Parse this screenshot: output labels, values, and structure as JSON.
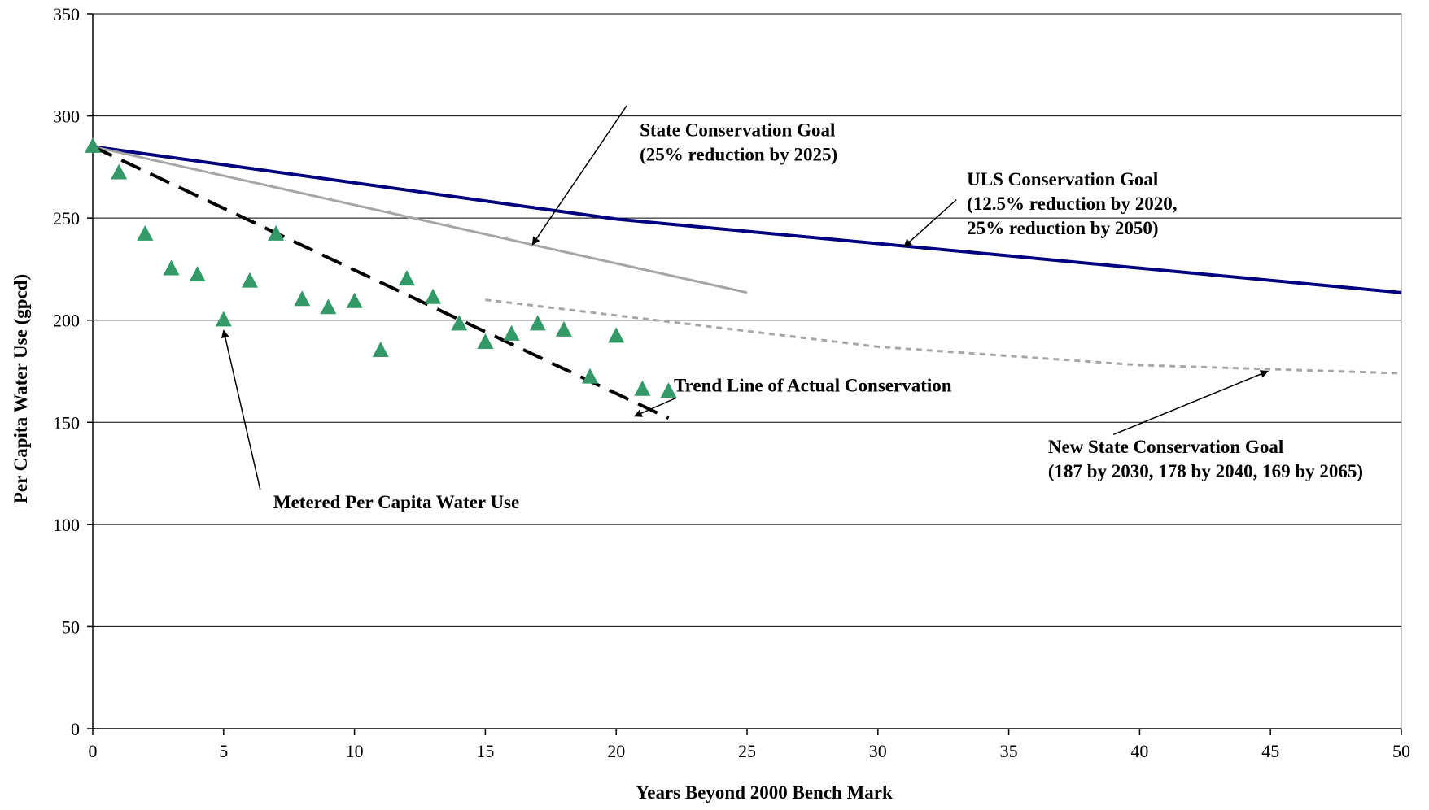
{
  "chart_data": {
    "type": "scatter",
    "title": "",
    "xlabel": "Years Beyond 2000 Bench Mark",
    "ylabel": "Per Capita Water Use (gpcd)",
    "xlim": [
      0,
      50
    ],
    "ylim": [
      0,
      350
    ],
    "x_ticks": [
      0,
      5,
      10,
      15,
      20,
      25,
      30,
      35,
      40,
      45,
      50
    ],
    "y_ticks": [
      0,
      50,
      100,
      150,
      200,
      250,
      300,
      350
    ],
    "grid": "horizontal",
    "legend": "none",
    "colors": {
      "metered": "#339966",
      "uls_goal": "#000080",
      "state_goal": "#a6a6a6",
      "new_state_goal": "#a6a6a6",
      "trend": "#000000",
      "grid": "#000000"
    },
    "series": [
      {
        "id": "metered",
        "style": "triangle-markers",
        "x": [
          0,
          1,
          2,
          3,
          4,
          5,
          6,
          7,
          8,
          9,
          10,
          11,
          12,
          13,
          14,
          15,
          16,
          17,
          18,
          19,
          20,
          21,
          22
        ],
        "y": [
          285,
          272,
          242,
          225,
          222,
          200,
          219,
          242,
          210,
          206,
          209,
          185,
          220,
          211,
          198,
          189,
          193,
          198,
          195,
          172,
          192,
          166,
          165
        ]
      },
      {
        "id": "uls_goal",
        "style": "solid-thick",
        "x": [
          0,
          20,
          50
        ],
        "y": [
          285,
          249.5,
          213.5
        ]
      },
      {
        "id": "state_goal",
        "style": "solid",
        "x": [
          0,
          25
        ],
        "y": [
          285,
          213.5
        ]
      },
      {
        "id": "new_state_goal",
        "style": "dotted",
        "x": [
          15,
          30,
          40,
          50
        ],
        "y": [
          210,
          187,
          178,
          174
        ]
      },
      {
        "id": "trend",
        "style": "dashed",
        "x": [
          0,
          22
        ],
        "y": [
          285,
          152
        ]
      }
    ],
    "annotations": [
      {
        "id": "state-goal-annotation",
        "lines": [
          "State Conservation Goal",
          "(25% reduction by 2025)"
        ],
        "text_pos": [
          20.9,
          290
        ],
        "arrow_from": [
          20.4,
          305
        ],
        "arrow_to": [
          16.8,
          237
        ]
      },
      {
        "id": "uls-goal-annotation",
        "lines": [
          "ULS Conservation Goal",
          "(12.5% reduction by 2020,",
          "25% reduction by 2050)"
        ],
        "text_pos": [
          33.4,
          266
        ],
        "arrow_from": [
          33.0,
          259
        ],
        "arrow_to": [
          31.0,
          236
        ]
      },
      {
        "id": "trend-annotation",
        "lines": [
          "Trend Line of Actual Conservation"
        ],
        "text_pos": [
          22.2,
          165
        ],
        "arrow_from": [
          22.3,
          162
        ],
        "arrow_to": [
          20.7,
          153
        ]
      },
      {
        "id": "new-state-goal-annotation",
        "lines": [
          "New State Conservation Goal",
          "(187 by 2030, 178 by 2040, 169 by 2065)"
        ],
        "text_pos": [
          36.5,
          135
        ],
        "arrow_from": [
          39.0,
          144
        ],
        "arrow_to": [
          44.9,
          175
        ]
      },
      {
        "id": "metered-annotation",
        "lines": [
          "Metered Per Capita Water Use"
        ],
        "text_pos": [
          6.9,
          108
        ],
        "arrow_from": [
          6.4,
          117
        ],
        "arrow_to": [
          5.0,
          195
        ]
      }
    ]
  }
}
